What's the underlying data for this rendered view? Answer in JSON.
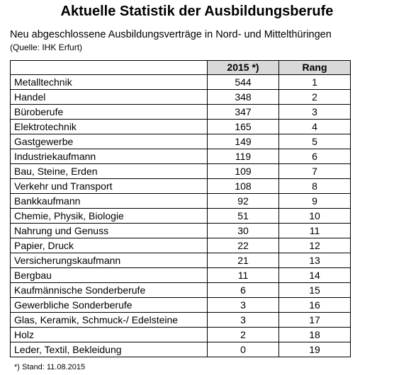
{
  "title": "Aktuelle Statistik der Ausbildungsberufe",
  "subtitle": "Neu abgeschlossene Ausbildungsverträge in Nord- und Mittelthüringen",
  "source": "(Quelle: IHK Erfurt)",
  "table": {
    "headers": [
      "",
      "2015 *)",
      "Rang"
    ],
    "rows": [
      {
        "name": "Metalltechnik",
        "value": "544",
        "rank": "1"
      },
      {
        "name": "Handel",
        "value": "348",
        "rank": "2"
      },
      {
        "name": "Büroberufe",
        "value": "347",
        "rank": "3"
      },
      {
        "name": "Elektrotechnik",
        "value": "165",
        "rank": "4"
      },
      {
        "name": "Gastgewerbe",
        "value": "149",
        "rank": "5"
      },
      {
        "name": "Industriekaufmann",
        "value": "119",
        "rank": "6"
      },
      {
        "name": "Bau, Steine, Erden",
        "value": "109",
        "rank": "7"
      },
      {
        "name": "Verkehr und Transport",
        "value": "108",
        "rank": "8"
      },
      {
        "name": "Bankkaufmann",
        "value": "92",
        "rank": "9"
      },
      {
        "name": "Chemie, Physik, Biologie",
        "value": "51",
        "rank": "10"
      },
      {
        "name": "Nahrung und Genuss",
        "value": "30",
        "rank": "11"
      },
      {
        "name": "Papier, Druck",
        "value": "22",
        "rank": "12"
      },
      {
        "name": "Versicherungskaufmann",
        "value": "21",
        "rank": "13"
      },
      {
        "name": "Bergbau",
        "value": "11",
        "rank": "14"
      },
      {
        "name": "Kaufmännische Sonderberufe",
        "value": "6",
        "rank": "15"
      },
      {
        "name": "Gewerbliche Sonderberufe",
        "value": "3",
        "rank": "16"
      },
      {
        "name": "Glas, Keramik, Schmuck-/ Edelsteine",
        "value": "3",
        "rank": "17"
      },
      {
        "name": "Holz",
        "value": "2",
        "rank": "18"
      },
      {
        "name": "Leder, Textil, Bekleidung",
        "value": "0",
        "rank": "19"
      }
    ]
  },
  "footnote": "*) Stand: 11.08.2015"
}
